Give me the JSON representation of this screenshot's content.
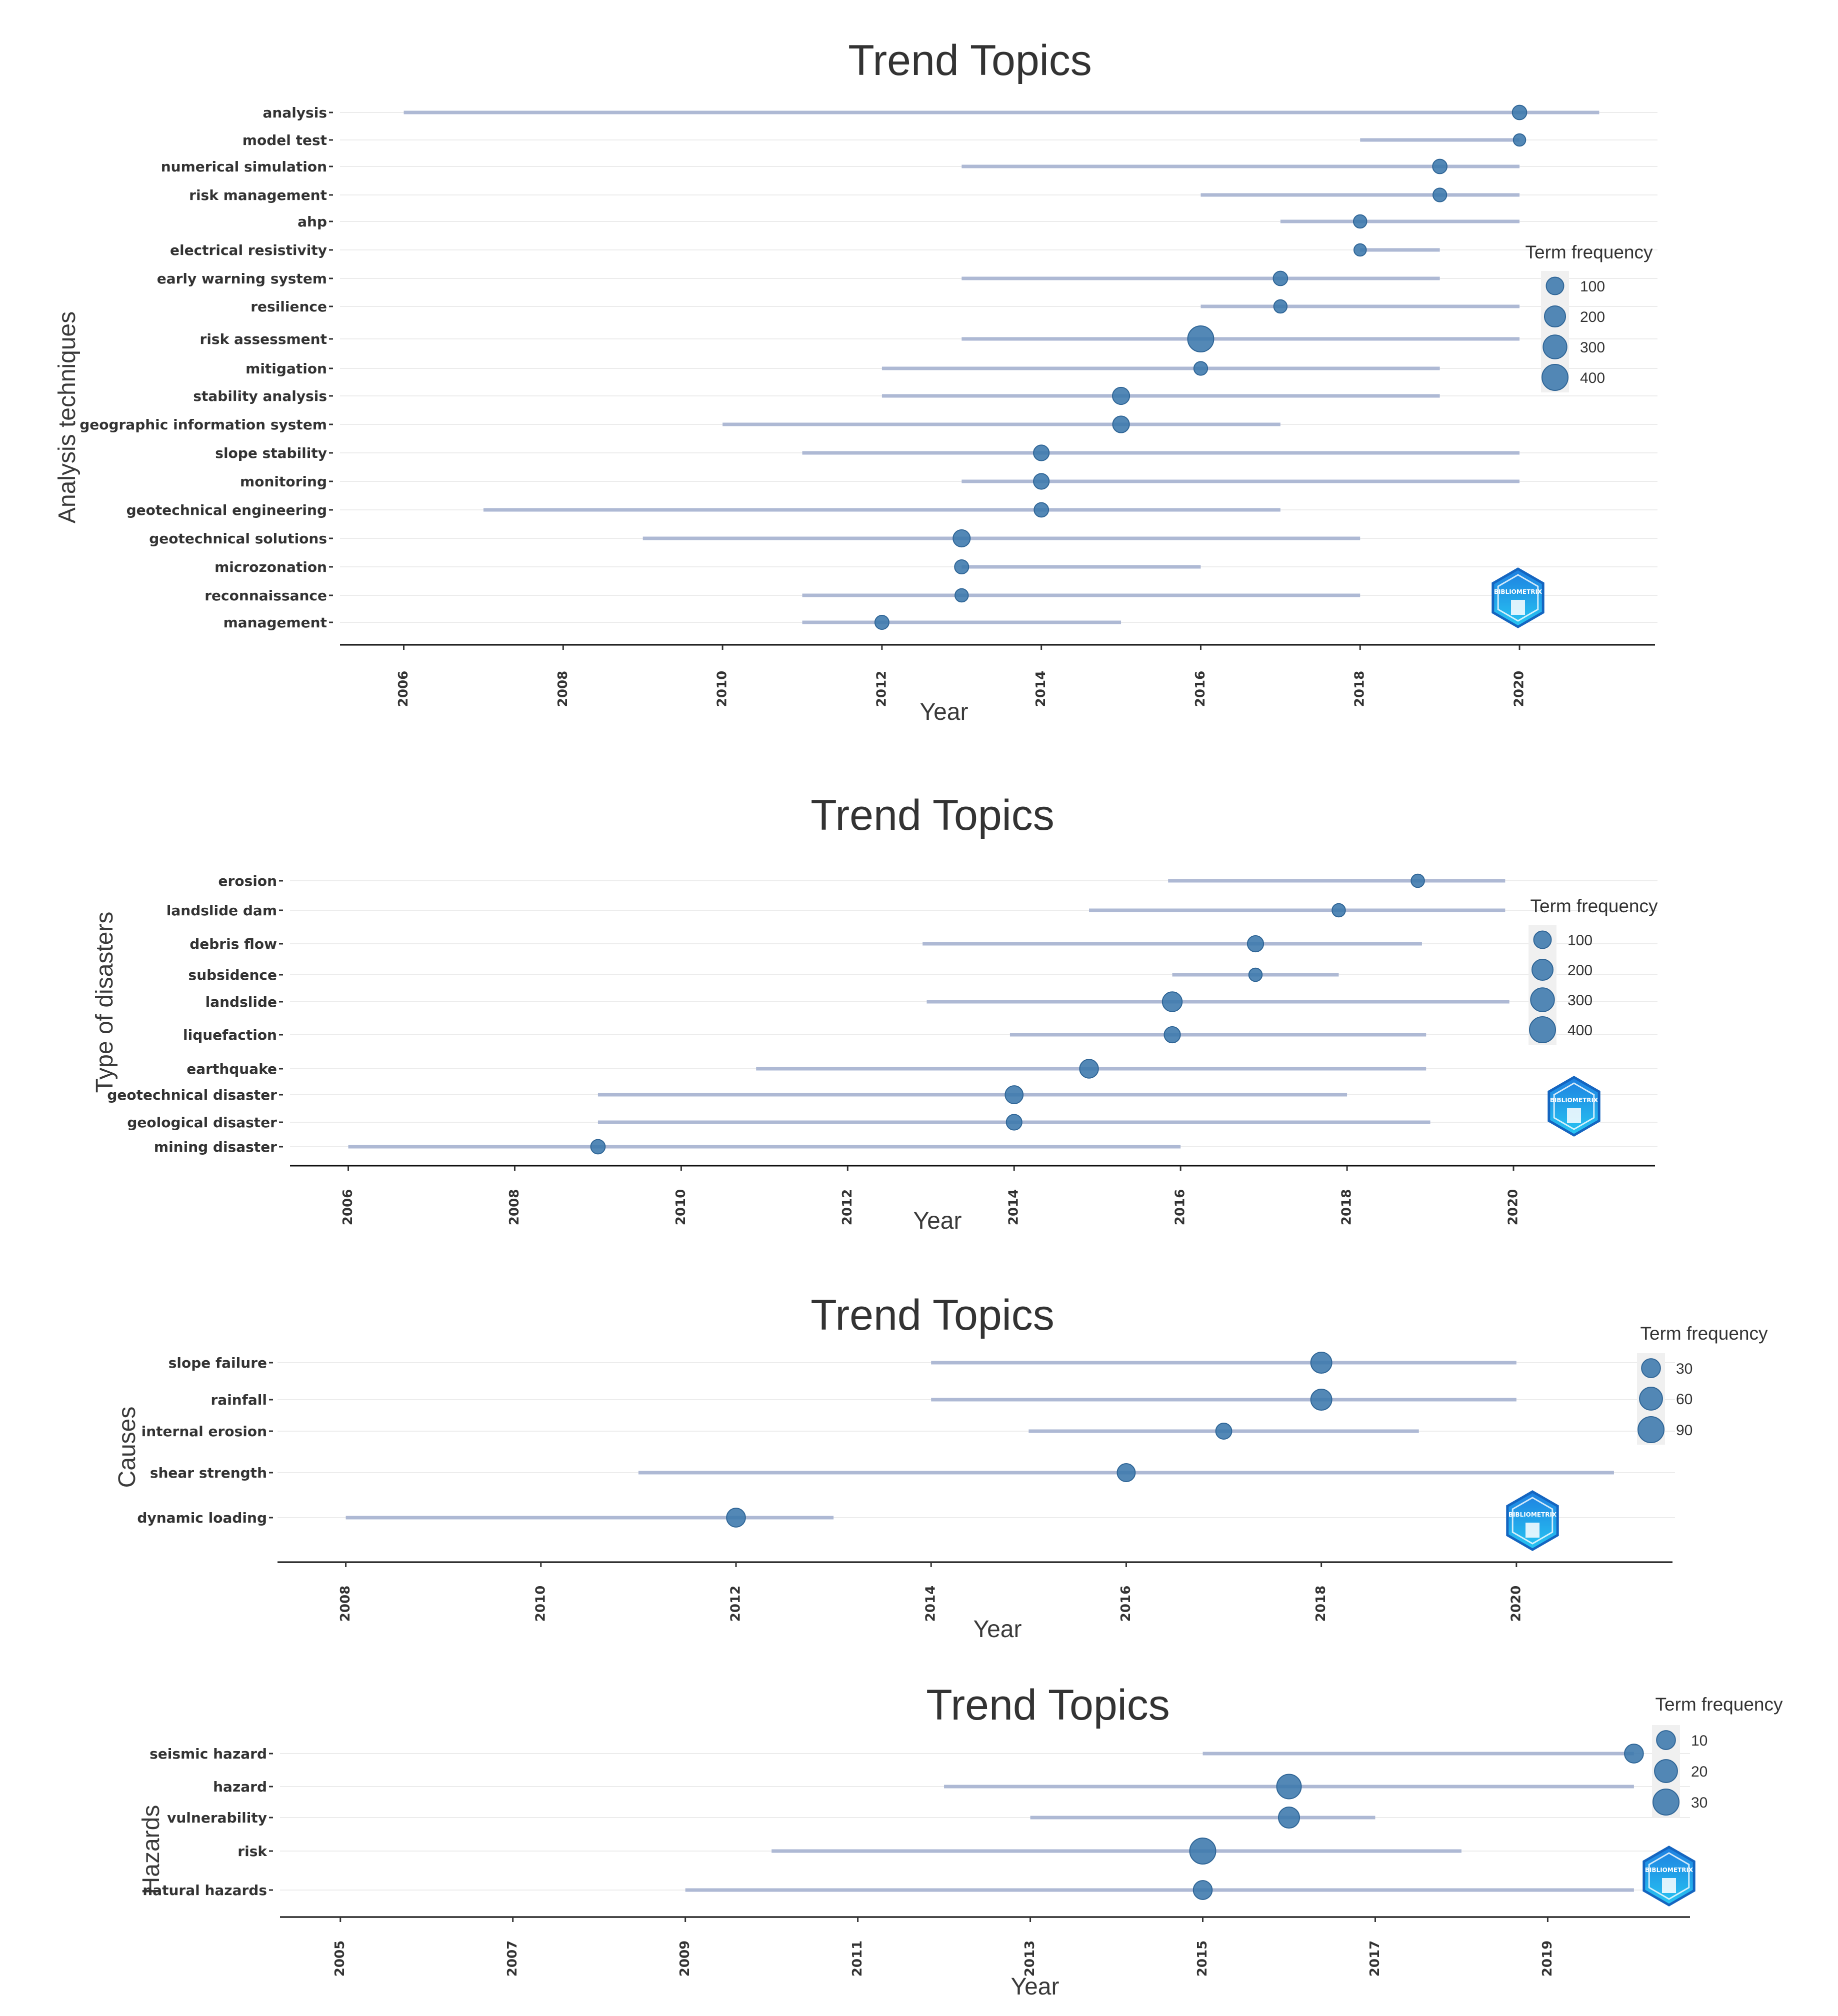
{
  "chart_data": [
    {
      "type": "scatter",
      "title": "Trend Topics",
      "xlabel": "Year",
      "ylabel": "Analysis techniques",
      "xlim": [
        2005.2,
        2021.7
      ],
      "xticks": [
        "2006",
        "2008",
        "2010",
        "2012",
        "2014",
        "2016",
        "2018",
        "2020"
      ],
      "legend_title": "Term frequency",
      "legend_values": [
        "100",
        "200",
        "300",
        "400"
      ],
      "logo_text": "BIBLIOMETRIX",
      "terms": [
        {
          "label": "analysis",
          "start": 2006,
          "end": 2021,
          "median": 2020,
          "freq": 40
        },
        {
          "label": "model test",
          "start": 2018,
          "end": 2020,
          "median": 2020,
          "freq": 15
        },
        {
          "label": "numerical simulation",
          "start": 2013,
          "end": 2020,
          "median": 2019,
          "freq": 40
        },
        {
          "label": "risk management",
          "start": 2016,
          "end": 2020,
          "median": 2019,
          "freq": 30
        },
        {
          "label": "ahp",
          "start": 2017,
          "end": 2020,
          "median": 2018,
          "freq": 25
        },
        {
          "label": "electrical resistivity",
          "start": 2018,
          "end": 2019,
          "median": 2018,
          "freq": 15
        },
        {
          "label": "early warning system",
          "start": 2013,
          "end": 2019,
          "median": 2017,
          "freq": 40
        },
        {
          "label": "resilience",
          "start": 2016,
          "end": 2020,
          "median": 2017,
          "freq": 25
        },
        {
          "label": "risk assessment",
          "start": 2013,
          "end": 2020,
          "median": 2016,
          "freq": 400
        },
        {
          "label": "mitigation",
          "start": 2012,
          "end": 2019,
          "median": 2016,
          "freq": 30
        },
        {
          "label": "stability analysis",
          "start": 2012,
          "end": 2019,
          "median": 2015,
          "freq": 90
        },
        {
          "label": "geographic information system",
          "start": 2010,
          "end": 2017,
          "median": 2015,
          "freq": 80
        },
        {
          "label": "slope stability",
          "start": 2011,
          "end": 2020,
          "median": 2014,
          "freq": 60
        },
        {
          "label": "monitoring",
          "start": 2013,
          "end": 2020,
          "median": 2014,
          "freq": 60
        },
        {
          "label": "geotechnical engineering",
          "start": 2007,
          "end": 2017,
          "median": 2014,
          "freq": 40
        },
        {
          "label": "geotechnical solutions",
          "start": 2009,
          "end": 2018,
          "median": 2013,
          "freq": 90
        },
        {
          "label": "microzonation",
          "start": 2013,
          "end": 2016,
          "median": 2013,
          "freq": 35
        },
        {
          "label": "reconnaissance",
          "start": 2011,
          "end": 2018,
          "median": 2013,
          "freq": 25
        },
        {
          "label": "management",
          "start": 2011,
          "end": 2015,
          "median": 2012,
          "freq": 35
        }
      ]
    },
    {
      "type": "scatter",
      "title": "Trend Topics",
      "xlabel": "Year",
      "ylabel": "Type of disasters",
      "xlim": [
        2005.3,
        2021.7
      ],
      "xticks": [
        "2006",
        "2008",
        "2010",
        "2012",
        "2014",
        "2016",
        "2018",
        "2020"
      ],
      "legend_title": "Term frequency",
      "legend_values": [
        "100",
        "200",
        "300",
        "400"
      ],
      "logo_text": "BIBLIOMETRIX",
      "terms": [
        {
          "label": "erosion",
          "start": 2015.85,
          "end": 2019.9,
          "median": 2018.85,
          "freq": 25
        },
        {
          "label": "landslide dam",
          "start": 2014.9,
          "end": 2019.9,
          "median": 2017.9,
          "freq": 25
        },
        {
          "label": "debris flow",
          "start": 2012.9,
          "end": 2018.9,
          "median": 2016.9,
          "freq": 70
        },
        {
          "label": "subsidence",
          "start": 2015.9,
          "end": 2017.9,
          "median": 2016.9,
          "freq": 25
        },
        {
          "label": "landslide",
          "start": 2012.95,
          "end": 2019.95,
          "median": 2015.9,
          "freq": 160
        },
        {
          "label": "liquefaction",
          "start": 2013.95,
          "end": 2018.95,
          "median": 2015.9,
          "freq": 70
        },
        {
          "label": "earthquake",
          "start": 2010.9,
          "end": 2018.95,
          "median": 2014.9,
          "freq": 130
        },
        {
          "label": "geotechnical disaster",
          "start": 2009,
          "end": 2018,
          "median": 2014,
          "freq": 110
        },
        {
          "label": "geological disaster",
          "start": 2009,
          "end": 2019,
          "median": 2014,
          "freq": 60
        },
        {
          "label": "mining disaster",
          "start": 2006,
          "end": 2016,
          "median": 2009,
          "freq": 40
        }
      ]
    },
    {
      "type": "scatter",
      "title": "Trend Topics",
      "xlabel": "Year",
      "ylabel": "Causes",
      "xlim": [
        2007.3,
        2021.6
      ],
      "xticks": [
        "2008",
        "2010",
        "2012",
        "2014",
        "2016",
        "2018",
        "2020"
      ],
      "legend_title": "Term frequency",
      "legend_values": [
        "30",
        "60",
        "90"
      ],
      "logo_text": "BIBLIOMETRIX",
      "terms": [
        {
          "label": "slope failure",
          "start": 2014,
          "end": 2020,
          "median": 2018,
          "freq": 45
        },
        {
          "label": "rainfall",
          "start": 2014,
          "end": 2020,
          "median": 2018,
          "freq": 45
        },
        {
          "label": "internal erosion",
          "start": 2015,
          "end": 2019,
          "median": 2017,
          "freq": 15
        },
        {
          "label": "shear strength",
          "start": 2011,
          "end": 2021,
          "median": 2016,
          "freq": 25
        },
        {
          "label": "dynamic loading",
          "start": 2008,
          "end": 2013,
          "median": 2012,
          "freq": 30
        }
      ]
    },
    {
      "type": "scatter",
      "title": "Trend Topics",
      "xlabel": "Year",
      "ylabel": "Hazards",
      "xlim": [
        2004.3,
        2020.65
      ],
      "xticks": [
        "2005",
        "2007",
        "2009",
        "2011",
        "2013",
        "2015",
        "2017",
        "2019"
      ],
      "legend_title": "Term frequency",
      "legend_values": [
        "10",
        "20",
        "30"
      ],
      "logo_text": "BIBLIOMETRIX",
      "terms": [
        {
          "label": "seismic hazard",
          "start": 2015,
          "end": 2020,
          "median": 2020,
          "freq": 10
        },
        {
          "label": "hazard",
          "start": 2012,
          "end": 2020,
          "median": 2016,
          "freq": 25
        },
        {
          "label": "vulnerability",
          "start": 2013,
          "end": 2017,
          "median": 2016,
          "freq": 15
        },
        {
          "label": "risk",
          "start": 2010,
          "end": 2018,
          "median": 2015,
          "freq": 30
        },
        {
          "label": "natural hazards",
          "start": 2009,
          "end": 2020,
          "median": 2015,
          "freq": 10
        }
      ]
    }
  ]
}
